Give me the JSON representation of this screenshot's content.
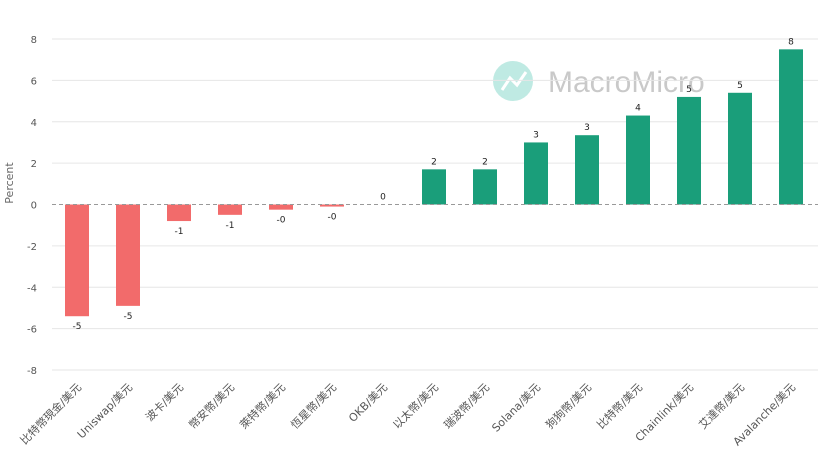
{
  "watermark": {
    "text": "MacroMicro",
    "icon": "macromicro-logo-icon"
  },
  "chart_data": {
    "type": "bar",
    "title": "",
    "xlabel": "",
    "ylabel": "Percent",
    "ylim": [
      -8,
      8
    ],
    "yticks": [
      8,
      6,
      4,
      2,
      0,
      -2,
      -4,
      -6,
      -8
    ],
    "grid": true,
    "categories": [
      "比特幣現金/美元",
      "Uniswap/美元",
      "波卡/美元",
      "幣安幣/美元",
      "萊特幣/美元",
      "恆星幣/美元",
      "OKB/美元",
      "以太幣/美元",
      "瑞波幣/美元",
      "Solana/美元",
      "狗狗幣/美元",
      "比特幣/美元",
      "Chainlink/美元",
      "艾達幣/美元",
      "Avalanche/美元"
    ],
    "values": [
      -5.4,
      -4.9,
      -0.8,
      -0.5,
      -0.25,
      -0.1,
      0,
      1.7,
      1.7,
      3.0,
      3.35,
      4.3,
      5.2,
      5.4,
      7.5
    ],
    "labels": [
      "-5",
      "-5",
      "-1",
      "-1",
      "-0",
      "-0",
      "0",
      "2",
      "2",
      "3",
      "3",
      "4",
      "5",
      "5",
      "8"
    ],
    "colors": {
      "positive": "#1a9e7a",
      "negative": "#f26b6b",
      "zero_line": "#999999",
      "grid": "#e6e6e6",
      "watermark_icon": "#7fd6c8"
    }
  }
}
